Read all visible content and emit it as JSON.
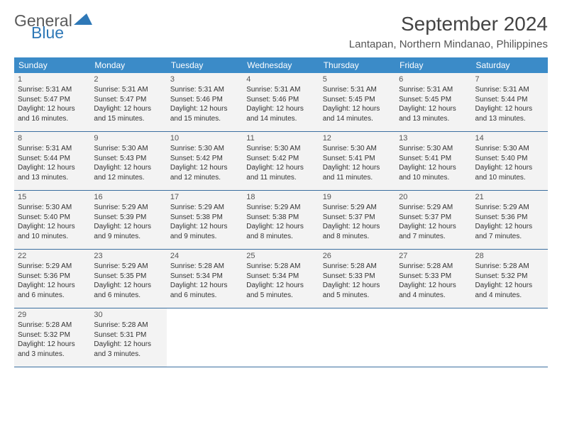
{
  "logo": {
    "text1": "General",
    "text2": "Blue",
    "color1": "#5a5a5a",
    "color2": "#2e78b7"
  },
  "title": "September 2024",
  "location": "Lantapan, Northern Mindanao, Philippines",
  "colors": {
    "header_bg": "#3b8bc8",
    "cell_bg": "#f3f3f3",
    "border": "#3b6fa0"
  },
  "weekdays": [
    "Sunday",
    "Monday",
    "Tuesday",
    "Wednesday",
    "Thursday",
    "Friday",
    "Saturday"
  ],
  "weeks": [
    [
      {
        "n": "1",
        "sr": "5:31 AM",
        "ss": "5:47 PM",
        "dl": "12 hours and 16 minutes."
      },
      {
        "n": "2",
        "sr": "5:31 AM",
        "ss": "5:47 PM",
        "dl": "12 hours and 15 minutes."
      },
      {
        "n": "3",
        "sr": "5:31 AM",
        "ss": "5:46 PM",
        "dl": "12 hours and 15 minutes."
      },
      {
        "n": "4",
        "sr": "5:31 AM",
        "ss": "5:46 PM",
        "dl": "12 hours and 14 minutes."
      },
      {
        "n": "5",
        "sr": "5:31 AM",
        "ss": "5:45 PM",
        "dl": "12 hours and 14 minutes."
      },
      {
        "n": "6",
        "sr": "5:31 AM",
        "ss": "5:45 PM",
        "dl": "12 hours and 13 minutes."
      },
      {
        "n": "7",
        "sr": "5:31 AM",
        "ss": "5:44 PM",
        "dl": "12 hours and 13 minutes."
      }
    ],
    [
      {
        "n": "8",
        "sr": "5:31 AM",
        "ss": "5:44 PM",
        "dl": "12 hours and 13 minutes."
      },
      {
        "n": "9",
        "sr": "5:30 AM",
        "ss": "5:43 PM",
        "dl": "12 hours and 12 minutes."
      },
      {
        "n": "10",
        "sr": "5:30 AM",
        "ss": "5:42 PM",
        "dl": "12 hours and 12 minutes."
      },
      {
        "n": "11",
        "sr": "5:30 AM",
        "ss": "5:42 PM",
        "dl": "12 hours and 11 minutes."
      },
      {
        "n": "12",
        "sr": "5:30 AM",
        "ss": "5:41 PM",
        "dl": "12 hours and 11 minutes."
      },
      {
        "n": "13",
        "sr": "5:30 AM",
        "ss": "5:41 PM",
        "dl": "12 hours and 10 minutes."
      },
      {
        "n": "14",
        "sr": "5:30 AM",
        "ss": "5:40 PM",
        "dl": "12 hours and 10 minutes."
      }
    ],
    [
      {
        "n": "15",
        "sr": "5:30 AM",
        "ss": "5:40 PM",
        "dl": "12 hours and 10 minutes."
      },
      {
        "n": "16",
        "sr": "5:29 AM",
        "ss": "5:39 PM",
        "dl": "12 hours and 9 minutes."
      },
      {
        "n": "17",
        "sr": "5:29 AM",
        "ss": "5:38 PM",
        "dl": "12 hours and 9 minutes."
      },
      {
        "n": "18",
        "sr": "5:29 AM",
        "ss": "5:38 PM",
        "dl": "12 hours and 8 minutes."
      },
      {
        "n": "19",
        "sr": "5:29 AM",
        "ss": "5:37 PM",
        "dl": "12 hours and 8 minutes."
      },
      {
        "n": "20",
        "sr": "5:29 AM",
        "ss": "5:37 PM",
        "dl": "12 hours and 7 minutes."
      },
      {
        "n": "21",
        "sr": "5:29 AM",
        "ss": "5:36 PM",
        "dl": "12 hours and 7 minutes."
      }
    ],
    [
      {
        "n": "22",
        "sr": "5:29 AM",
        "ss": "5:36 PM",
        "dl": "12 hours and 6 minutes."
      },
      {
        "n": "23",
        "sr": "5:29 AM",
        "ss": "5:35 PM",
        "dl": "12 hours and 6 minutes."
      },
      {
        "n": "24",
        "sr": "5:28 AM",
        "ss": "5:34 PM",
        "dl": "12 hours and 6 minutes."
      },
      {
        "n": "25",
        "sr": "5:28 AM",
        "ss": "5:34 PM",
        "dl": "12 hours and 5 minutes."
      },
      {
        "n": "26",
        "sr": "5:28 AM",
        "ss": "5:33 PM",
        "dl": "12 hours and 5 minutes."
      },
      {
        "n": "27",
        "sr": "5:28 AM",
        "ss": "5:33 PM",
        "dl": "12 hours and 4 minutes."
      },
      {
        "n": "28",
        "sr": "5:28 AM",
        "ss": "5:32 PM",
        "dl": "12 hours and 4 minutes."
      }
    ],
    [
      {
        "n": "29",
        "sr": "5:28 AM",
        "ss": "5:32 PM",
        "dl": "12 hours and 3 minutes."
      },
      {
        "n": "30",
        "sr": "5:28 AM",
        "ss": "5:31 PM",
        "dl": "12 hours and 3 minutes."
      },
      null,
      null,
      null,
      null,
      null
    ]
  ],
  "labels": {
    "sunrise": "Sunrise:",
    "sunset": "Sunset:",
    "daylight": "Daylight:"
  }
}
